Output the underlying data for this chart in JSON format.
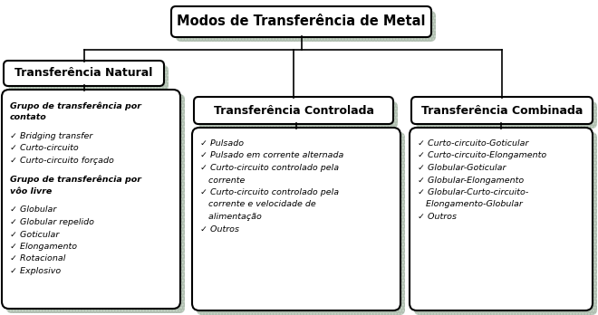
{
  "bg_color": "#ffffff",
  "box_fill": "#ffffff",
  "box_edge": "#000000",
  "shadow_color": "#b0bdb0",
  "root_text": "Modos de Transferência de Metal",
  "natural_text": "Transferência Natural",
  "controlada_text": "Transferência Controlada",
  "combinada_text": "Transferência Combinada",
  "nat_lines": [
    {
      "t": "Grupo de transferência por contato",
      "bold": true,
      "italic": true,
      "gap_after": true
    },
    {
      "t": "✓ Bridging transfer",
      "bold": false,
      "italic": true,
      "gap_after": false
    },
    {
      "t": "✓ Curto-circuito",
      "bold": false,
      "italic": true,
      "gap_after": false
    },
    {
      "t": "✓ Curto-circuito forçado",
      "bold": false,
      "italic": true,
      "gap_after": true
    },
    {
      "t": "Grupo de transferência por vôo livre",
      "bold": true,
      "italic": true,
      "gap_after": true
    },
    {
      "t": "✓ Globular",
      "bold": false,
      "italic": true,
      "gap_after": false
    },
    {
      "t": "✓ Globular repelido",
      "bold": false,
      "italic": true,
      "gap_after": false
    },
    {
      "t": "✓ Goticular",
      "bold": false,
      "italic": true,
      "gap_after": false
    },
    {
      "t": "✓ Elongamento",
      "bold": false,
      "italic": true,
      "gap_after": false
    },
    {
      "t": "✓ Rotacional",
      "bold": false,
      "italic": true,
      "gap_after": false
    },
    {
      "t": "✓ Explosivo",
      "bold": false,
      "italic": true,
      "gap_after": false
    }
  ],
  "ctrl_lines": [
    {
      "t": "✓ Pulsado",
      "italic": true
    },
    {
      "t": "✓ Pulsado em corrente alternada",
      "italic": true
    },
    {
      "t": "✓ Curto-circuito controlado pela corrente",
      "italic": true
    },
    {
      "t": "✓ Curto-circuito controlado pela corrente e velocidade de alimentação",
      "italic": true
    },
    {
      "t": "✓ Outros",
      "italic": true
    }
  ],
  "comb_lines": [
    {
      "t": "✓ Curto-circuito-Goticular",
      "italic": true
    },
    {
      "t": "✓ Curto-circuito-Elongamento",
      "italic": true
    },
    {
      "t": "✓ Globular-Goticular",
      "italic": true
    },
    {
      "t": "✓ Globular-Elongamento",
      "italic": true
    },
    {
      "t": "✓ Globular-Curto-circuito- Elongamento-Globular",
      "italic": true
    },
    {
      "t": "✓ Outros",
      "italic": true
    }
  ]
}
